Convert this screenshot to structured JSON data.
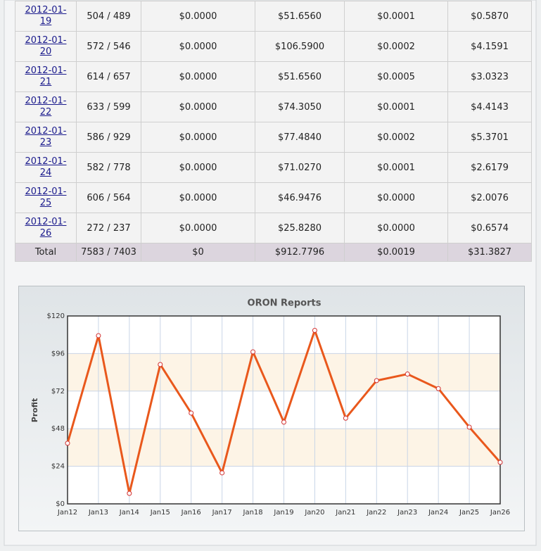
{
  "table": {
    "rows": [
      [
        "2012-01-19",
        "504 / 489",
        "$0.0000",
        "$51.6560",
        "$0.0001",
        "$0.5870"
      ],
      [
        "2012-01-20",
        "572 / 546",
        "$0.0000",
        "$106.5900",
        "$0.0002",
        "$4.1591"
      ],
      [
        "2012-01-21",
        "614 / 657",
        "$0.0000",
        "$51.6560",
        "$0.0005",
        "$3.0323"
      ],
      [
        "2012-01-22",
        "633 / 599",
        "$0.0000",
        "$74.3050",
        "$0.0001",
        "$4.4143"
      ],
      [
        "2012-01-23",
        "586 / 929",
        "$0.0000",
        "$77.4840",
        "$0.0002",
        "$5.3701"
      ],
      [
        "2012-01-24",
        "582 / 778",
        "$0.0000",
        "$71.0270",
        "$0.0001",
        "$2.6179"
      ],
      [
        "2012-01-25",
        "606 / 564",
        "$0.0000",
        "$46.9476",
        "$0.0000",
        "$2.0076"
      ],
      [
        "2012-01-26",
        "272 / 237",
        "$0.0000",
        "$25.8280",
        "$0.0000",
        "$0.6574"
      ]
    ],
    "total": [
      "Total",
      "7583 / 7403",
      "$0",
      "$912.7796",
      "$0.0019",
      "$31.3827"
    ]
  },
  "chart_data": {
    "type": "line",
    "title": "ORON Reports",
    "y_label": "Profit",
    "categories": [
      "Jan12",
      "Jan13",
      "Jan14",
      "Jan15",
      "Jan16",
      "Jan17",
      "Jan18",
      "Jan19",
      "Jan20",
      "Jan21",
      "Jan22",
      "Jan23",
      "Jan24",
      "Jan25",
      "Jan26"
    ],
    "series": [
      {
        "name": "Profit",
        "color": "#e9581c",
        "values": [
          38.7,
          107.4,
          6.7,
          89.0,
          58.0,
          19.8,
          97.1,
          52.2,
          110.8,
          54.7,
          78.7,
          82.9,
          73.6,
          49.0,
          26.5
        ]
      }
    ],
    "ylim": [
      0,
      120
    ],
    "yticks": [
      {
        "value": 0,
        "label": "$0"
      },
      {
        "value": 24,
        "label": "$24"
      },
      {
        "value": 48,
        "label": "$48"
      },
      {
        "value": 72,
        "label": "$72"
      },
      {
        "value": 96,
        "label": "$96"
      },
      {
        "value": 120,
        "label": "$120"
      }
    ],
    "grid": true,
    "alternate_bands": true,
    "band_color": "#fdf4e6"
  }
}
